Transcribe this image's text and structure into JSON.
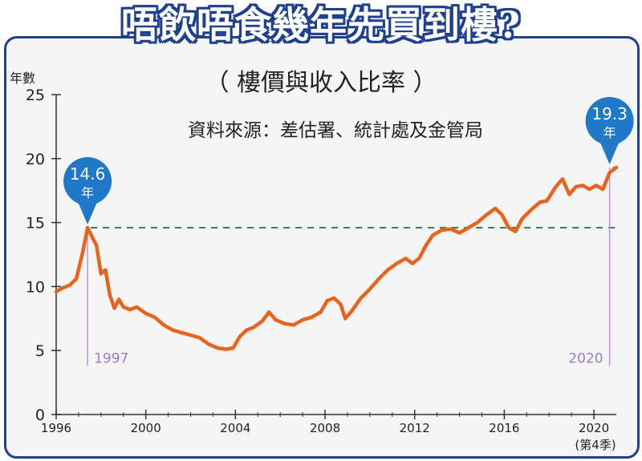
{
  "headline": "唔飲唔食幾年先買到樓?",
  "chart_data": {
    "type": "line",
    "title": "（ 樓價與收入比率 ）",
    "subtitle": "資料來源：差估署、統計處及金管局",
    "ylabel": "年數",
    "xlabel_note": "(第4季)",
    "ylim": [
      0,
      25
    ],
    "xlim": [
      1996,
      2021
    ],
    "y_ticks": [
      "0",
      "5",
      "10",
      "15",
      "20",
      "25"
    ],
    "x_ticks": [
      "1996",
      "2000",
      "2004",
      "2008",
      "2012",
      "2016",
      "2020"
    ],
    "grid": false,
    "series": [
      {
        "color": "#e8641e",
        "points": [
          [
            1996.0,
            9.6
          ],
          [
            1996.3,
            9.9
          ],
          [
            1996.6,
            10.1
          ],
          [
            1996.9,
            10.6
          ],
          [
            1997.2,
            12.8
          ],
          [
            1997.4,
            14.6
          ],
          [
            1997.6,
            13.9
          ],
          [
            1997.8,
            13.2
          ],
          [
            1998.0,
            11.0
          ],
          [
            1998.2,
            11.3
          ],
          [
            1998.4,
            9.3
          ],
          [
            1998.6,
            8.3
          ],
          [
            1998.8,
            9.0
          ],
          [
            1999.0,
            8.4
          ],
          [
            1999.3,
            8.2
          ],
          [
            1999.6,
            8.4
          ],
          [
            2000.0,
            7.9
          ],
          [
            2000.4,
            7.6
          ],
          [
            2000.8,
            7.0
          ],
          [
            2001.2,
            6.6
          ],
          [
            2001.6,
            6.4
          ],
          [
            2002.0,
            6.2
          ],
          [
            2002.4,
            6.0
          ],
          [
            2002.8,
            5.5
          ],
          [
            2003.2,
            5.2
          ],
          [
            2003.6,
            5.1
          ],
          [
            2003.9,
            5.2
          ],
          [
            2004.2,
            6.1
          ],
          [
            2004.5,
            6.6
          ],
          [
            2004.8,
            6.8
          ],
          [
            2005.2,
            7.3
          ],
          [
            2005.5,
            8.0
          ],
          [
            2005.8,
            7.4
          ],
          [
            2006.2,
            7.1
          ],
          [
            2006.6,
            7.0
          ],
          [
            2007.0,
            7.4
          ],
          [
            2007.4,
            7.6
          ],
          [
            2007.8,
            8.0
          ],
          [
            2008.1,
            8.9
          ],
          [
            2008.4,
            9.1
          ],
          [
            2008.7,
            8.6
          ],
          [
            2008.9,
            7.5
          ],
          [
            2009.2,
            8.1
          ],
          [
            2009.6,
            9.1
          ],
          [
            2010.0,
            9.8
          ],
          [
            2010.4,
            10.6
          ],
          [
            2010.8,
            11.3
          ],
          [
            2011.2,
            11.8
          ],
          [
            2011.6,
            12.2
          ],
          [
            2011.9,
            11.8
          ],
          [
            2012.2,
            12.2
          ],
          [
            2012.5,
            13.2
          ],
          [
            2012.8,
            14.0
          ],
          [
            2013.2,
            14.4
          ],
          [
            2013.6,
            14.5
          ],
          [
            2014.0,
            14.2
          ],
          [
            2014.4,
            14.6
          ],
          [
            2014.8,
            15.0
          ],
          [
            2015.2,
            15.6
          ],
          [
            2015.6,
            16.1
          ],
          [
            2015.9,
            15.6
          ],
          [
            2016.2,
            14.6
          ],
          [
            2016.5,
            14.3
          ],
          [
            2016.8,
            15.3
          ],
          [
            2017.2,
            16.0
          ],
          [
            2017.6,
            16.6
          ],
          [
            2017.9,
            16.7
          ],
          [
            2018.3,
            17.8
          ],
          [
            2018.6,
            18.4
          ],
          [
            2018.9,
            17.2
          ],
          [
            2019.2,
            17.8
          ],
          [
            2019.5,
            17.9
          ],
          [
            2019.8,
            17.6
          ],
          [
            2020.1,
            17.9
          ],
          [
            2020.4,
            17.6
          ],
          [
            2020.7,
            18.9
          ],
          [
            2021.0,
            19.3
          ]
        ]
      }
    ],
    "annotations": [
      {
        "x": 1997.4,
        "y": 14.6,
        "value": "14.6",
        "unit": "年",
        "year_label": "1997"
      },
      {
        "x": 2020.7,
        "y": 19.3,
        "value": "19.3",
        "unit": "年",
        "year_label": "2020"
      }
    ],
    "colors": {
      "line": "#e8641e",
      "bubble": "#1f78c8",
      "ref_line": "#2e8b3c",
      "marker": "#b79ad8",
      "frame": "#1f3f8f"
    }
  }
}
